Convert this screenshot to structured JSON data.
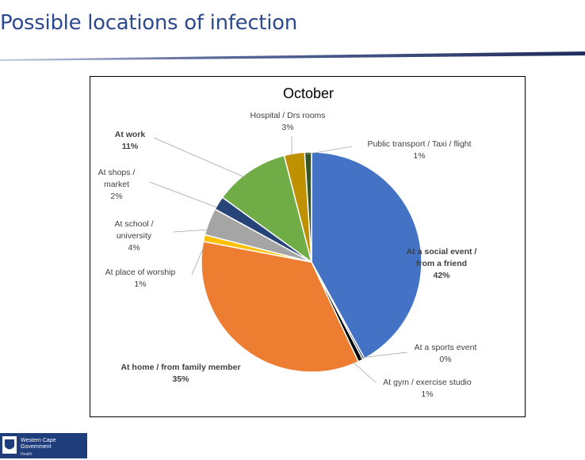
{
  "slide": {
    "title": "Possible locations of infection"
  },
  "logo": {
    "line1": "Western Cape",
    "line2": "Government",
    "line3": "Health"
  },
  "colors": {
    "title": "#2e4a8f",
    "rule": "#1f2d5c"
  },
  "chart_data": {
    "type": "pie",
    "title": "October",
    "start_angle_deg": 0,
    "direction": "clockwise",
    "slices": [
      {
        "label": "At a social event / from a friend",
        "value": 42,
        "display": "42%",
        "color": "#4472c4"
      },
      {
        "label": "At a sports event",
        "value": 0.3,
        "display": "0%",
        "color": "#1f3864"
      },
      {
        "label": "At gym / exercise studio",
        "value": 0.7,
        "display": "1%",
        "color": "#000000"
      },
      {
        "label": "At home / from family member",
        "value": 35,
        "display": "35%",
        "color": "#ed7d31"
      },
      {
        "label": "At place of worship",
        "value": 1,
        "display": "1%",
        "color": "#ffc000"
      },
      {
        "label": "At school / university",
        "value": 4,
        "display": "4%",
        "color": "#a5a5a5"
      },
      {
        "label": "At shops / market",
        "value": 2,
        "display": "2%",
        "color": "#264478"
      },
      {
        "label": "At work",
        "value": 11,
        "display": "11%",
        "color": "#70ad47"
      },
      {
        "label": "Hospital / Drs rooms",
        "value": 3,
        "display": "3%",
        "color": "#bf9000"
      },
      {
        "label": "Public transport / Taxi / flight",
        "value": 1,
        "display": "1%",
        "color": "#375623"
      }
    ],
    "labels": [
      {
        "lines": [
          "At a social event /",
          "from a friend",
          "42%"
        ],
        "bold": true
      },
      {
        "lines": [
          "At a sports event",
          "0%"
        ],
        "bold": false
      },
      {
        "lines": [
          "At gym / exercise studio",
          "1%"
        ],
        "bold": false
      },
      {
        "lines": [
          "At home / from family member",
          "35%"
        ],
        "bold": true
      },
      {
        "lines": [
          "At place of worship",
          "1%"
        ],
        "bold": false
      },
      {
        "lines": [
          "At school /",
          "university",
          "4%"
        ],
        "bold": false
      },
      {
        "lines": [
          "At shops /",
          "market",
          "2%"
        ],
        "bold": false
      },
      {
        "lines": [
          "At work",
          "11%"
        ],
        "bold": true
      },
      {
        "lines": [
          "Hospital / Drs rooms",
          "3%"
        ],
        "bold": false
      },
      {
        "lines": [
          "Public transport / Taxi / flight",
          "1%"
        ],
        "bold": false
      }
    ]
  }
}
